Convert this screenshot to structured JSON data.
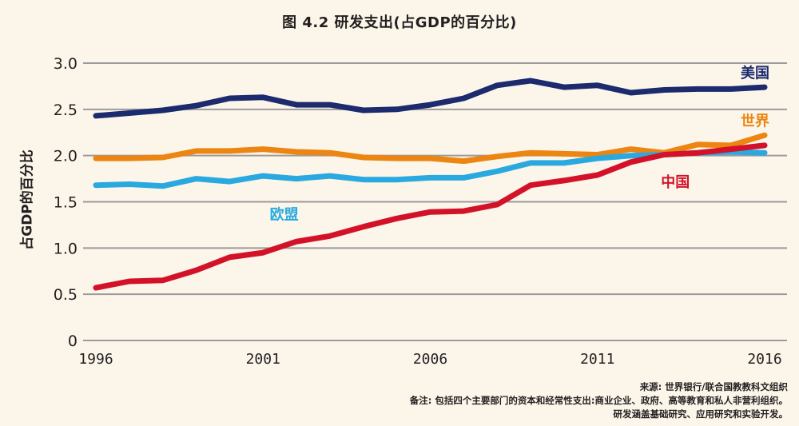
{
  "chart_data": {
    "type": "line",
    "title": "图 4.2 研发支出(占GDP的百分比)",
    "xlabel": "",
    "ylabel": "占GDP的百分比",
    "x": [
      1996,
      1997,
      1998,
      1999,
      2000,
      2001,
      2002,
      2003,
      2004,
      2005,
      2006,
      2007,
      2008,
      2009,
      2010,
      2011,
      2012,
      2013,
      2014,
      2015,
      2016
    ],
    "xlim": [
      1996,
      2016
    ],
    "ylim": [
      0,
      3.0
    ],
    "x_ticks": [
      1996,
      2001,
      2006,
      2011,
      2016
    ],
    "x_tick_labels": [
      "1996",
      "2001",
      "2006",
      "2011",
      "2016"
    ],
    "y_ticks": [
      0,
      0.5,
      1.0,
      1.5,
      2.0,
      2.5,
      3.0
    ],
    "y_tick_labels": [
      "0",
      "0.5",
      "1.0",
      "1.5",
      "2.0",
      "2.5",
      "3.0"
    ],
    "grid": "horizontal",
    "legend": "inline labels",
    "series": [
      {
        "name": "美国",
        "color": "#1c2a6e",
        "values": [
          2.43,
          2.46,
          2.49,
          2.54,
          2.62,
          2.63,
          2.55,
          2.55,
          2.49,
          2.5,
          2.55,
          2.62,
          2.76,
          2.81,
          2.74,
          2.76,
          2.68,
          2.71,
          2.72,
          2.72,
          2.74
        ]
      },
      {
        "name": "世界",
        "color": "#ec8511",
        "values": [
          1.97,
          1.97,
          1.98,
          2.05,
          2.05,
          2.07,
          2.04,
          2.03,
          1.98,
          1.97,
          1.97,
          1.94,
          1.99,
          2.03,
          2.02,
          2.01,
          2.07,
          2.03,
          2.12,
          2.11,
          2.22
        ]
      },
      {
        "name": "欧盟",
        "color": "#2aa9e0",
        "values": [
          1.68,
          1.69,
          1.67,
          1.75,
          1.72,
          1.78,
          1.75,
          1.78,
          1.74,
          1.74,
          1.76,
          1.76,
          1.83,
          1.92,
          1.92,
          1.97,
          2.0,
          2.01,
          2.03,
          2.04,
          2.03
        ]
      },
      {
        "name": "中国",
        "color": "#d3122a",
        "values": [
          0.57,
          0.64,
          0.65,
          0.76,
          0.9,
          0.95,
          1.07,
          1.13,
          1.23,
          1.32,
          1.39,
          1.4,
          1.47,
          1.68,
          1.73,
          1.79,
          1.93,
          2.01,
          2.03,
          2.07,
          2.11
        ]
      }
    ],
    "annotations": [
      {
        "text": "美国",
        "series": "美国",
        "anchor": {
          "x": 2016,
          "y": 2.9
        }
      },
      {
        "text": "世界",
        "series": "世界",
        "anchor": {
          "x": 2016,
          "y": 2.38
        }
      },
      {
        "text": "欧盟",
        "series": "欧盟",
        "anchor": {
          "x": 2001.2,
          "y": 1.37
        }
      },
      {
        "text": "中国",
        "series": "中国",
        "anchor": {
          "x": 2012.9,
          "y": 1.72
        }
      }
    ]
  },
  "footer": {
    "source": "来源: 世界银行/联合国教教科文组织",
    "note_line1": "备注: 包括四个主要部门的资本和经常性支出:商业企业、政府、高等教育和私人非营利组织。",
    "note_line2": "研发涵盖基础研究、应用研究和实验开发。"
  },
  "colors": {
    "background": "#fcf6ea",
    "gridline": "#9b9b9b",
    "text": "#231f20"
  }
}
